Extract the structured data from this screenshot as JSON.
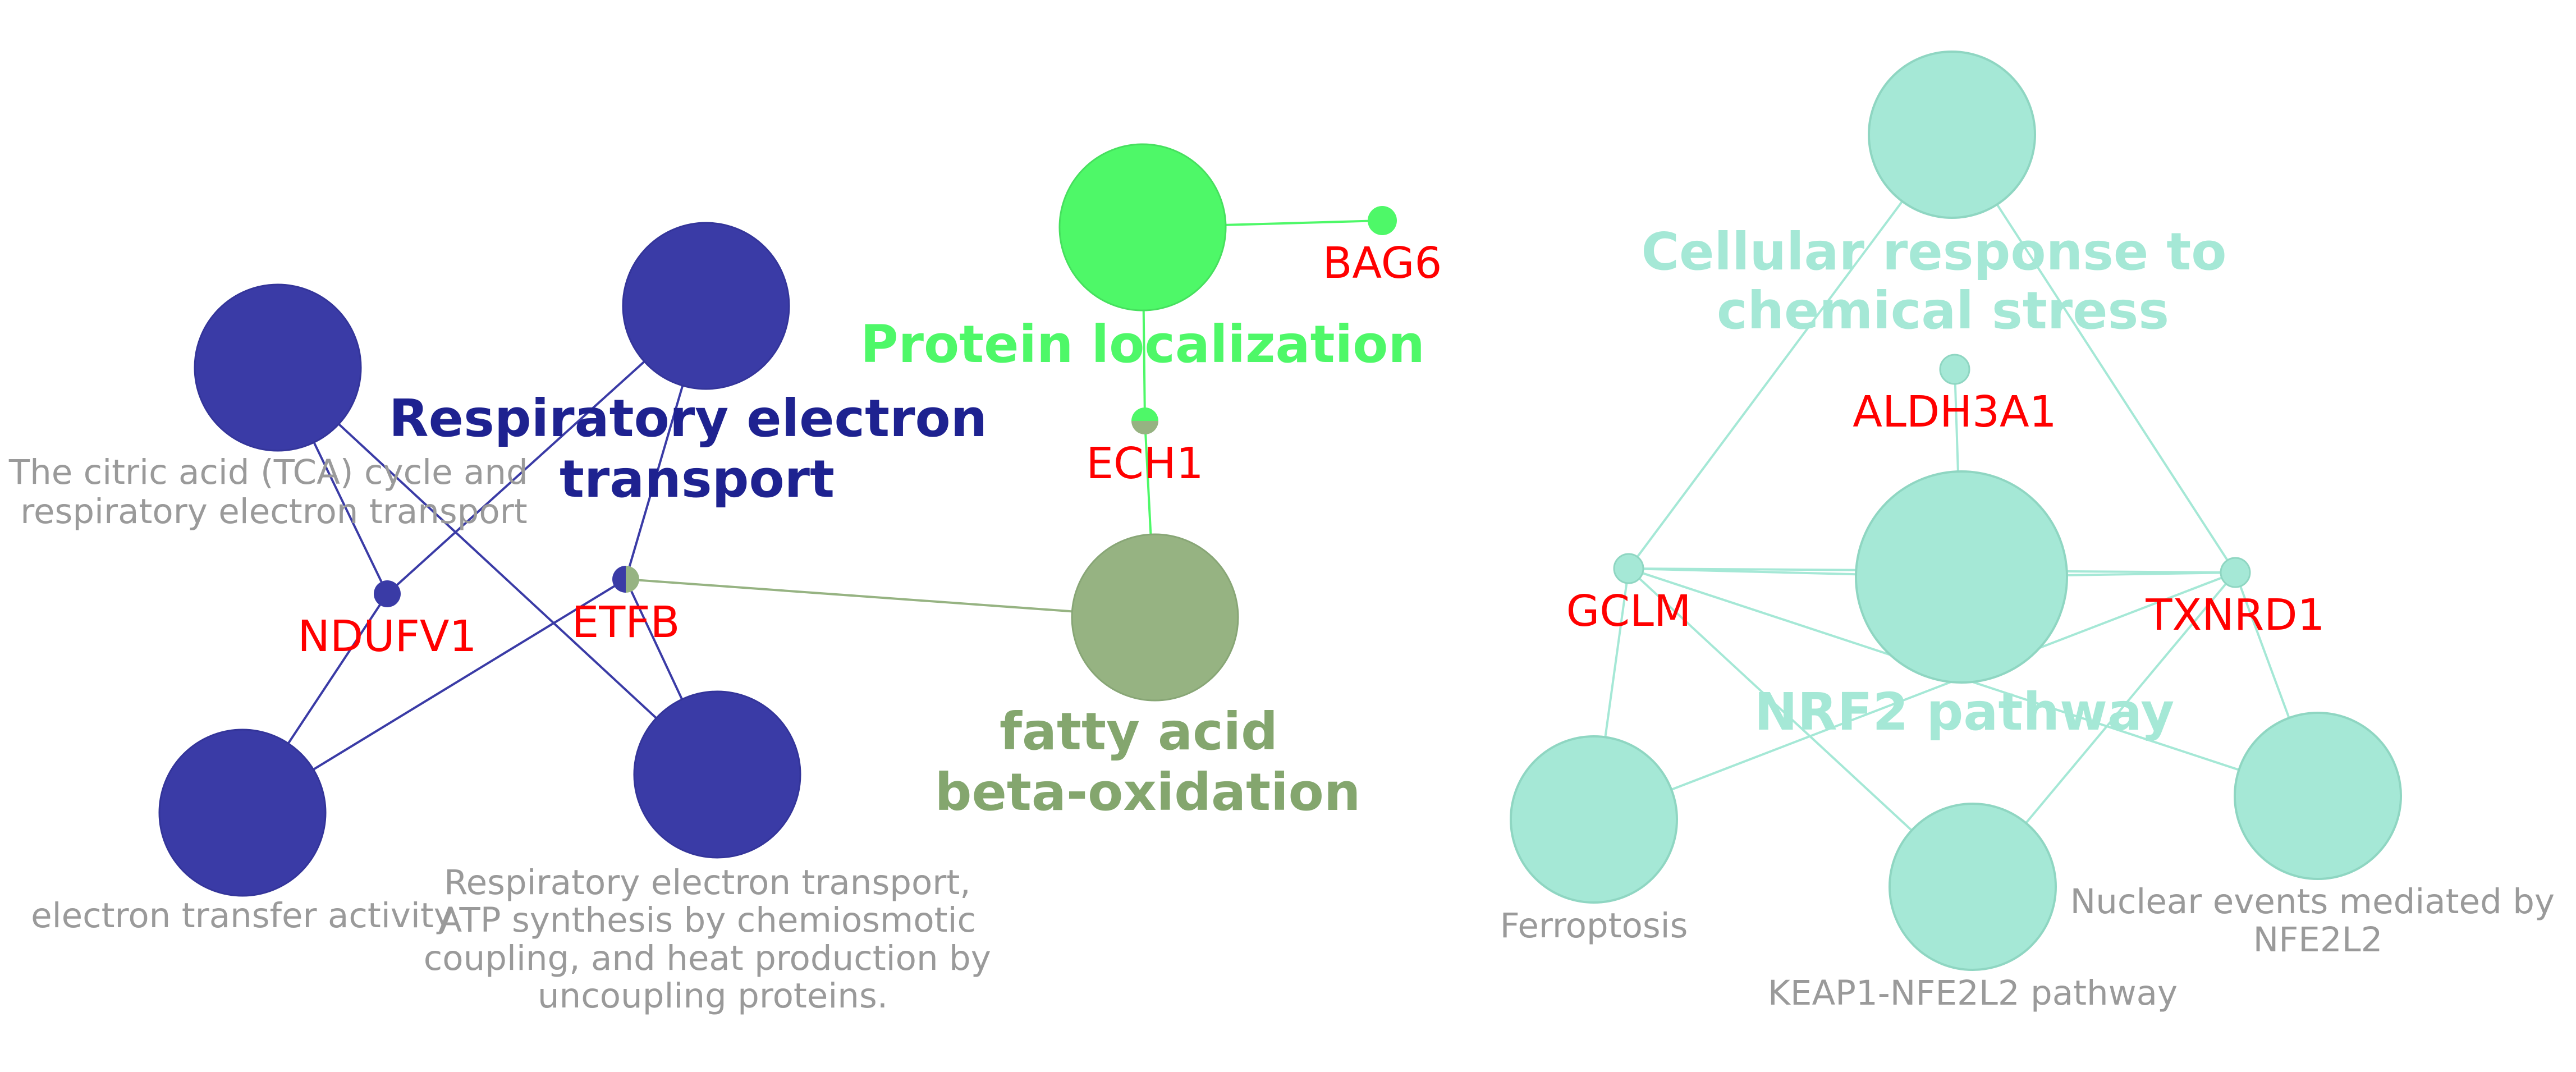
{
  "colors": {
    "respiratory": "#3a3ba6",
    "respiratory_title": "#1e2290",
    "protein_localization": "#4ef868",
    "fatty_acid": "#96b382",
    "fatty_acid_title": "#84a66e",
    "nrf2": "#a5e8d6",
    "nrf2_node_stroke": "#8fd6c2",
    "term_label": "#9a9a9a",
    "gene_label": "#ff0000"
  },
  "clusters": {
    "respiratory": {
      "title_lines": [
        "Respiratory electron",
        "transport"
      ]
    },
    "protein_localization": {
      "title_lines": [
        "Protein localization"
      ]
    },
    "fatty_acid": {
      "title_lines": [
        "fatty acid",
        "beta-oxidation"
      ]
    },
    "nrf2_stress": {
      "title_lines": [
        "Cellular response to",
        "chemical stress"
      ]
    },
    "nrf2_pathway": {
      "title_lines": [
        "NRF2 pathway"
      ]
    }
  },
  "terms": {
    "tca": [
      "The citric acid (TCA) cycle and",
      "respiratory electron transport"
    ],
    "electron_transfer": [
      "electron transfer activity"
    ],
    "resp_atp": [
      "Respiratory electron transport,",
      "ATP synthesis by chemiosmotic",
      "coupling, and heat production by",
      "uncoupling proteins."
    ],
    "ferroptosis": [
      "Ferroptosis"
    ],
    "keap1": [
      "KEAP1-NFE2L2 pathway"
    ],
    "nuclear_events": [
      "Nuclear events mediated by",
      "NFE2L2"
    ]
  },
  "genes": {
    "ndufv1": "NDUFV1",
    "etfb": "ETFB",
    "ech1": "ECH1",
    "bag6": "BAG6",
    "aldh3a1": "ALDH3A1",
    "gclm": "GCLM",
    "txnrd1": "TXNRD1"
  }
}
